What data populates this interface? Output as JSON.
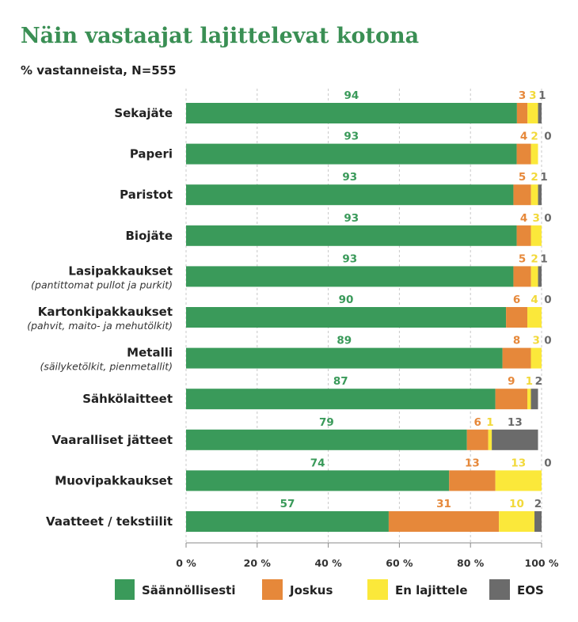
{
  "title": "Näin vastaajat lajittelevat kotona",
  "subtitle": "% vastanneista, N=555",
  "chart_data": {
    "type": "bar",
    "orientation": "horizontal",
    "stacked": true,
    "xlim": [
      0,
      100
    ],
    "x_ticks": [
      "0 %",
      "20 %",
      "40 %",
      "60 %",
      "80 %",
      "100 %"
    ],
    "categories": [
      {
        "label": "Sekajäte",
        "sublabel": ""
      },
      {
        "label": "Paperi",
        "sublabel": ""
      },
      {
        "label": "Paristot",
        "sublabel": ""
      },
      {
        "label": "Biojäte",
        "sublabel": ""
      },
      {
        "label": "Lasipakkaukset",
        "sublabel": "(pantittomat pullot ja purkit)"
      },
      {
        "label": "Kartonkipakkaukset",
        "sublabel": "(pahvit, maito- ja mehutölkit)"
      },
      {
        "label": "Metalli",
        "sublabel": "(säilyketölkit, pienmetallit)"
      },
      {
        "label": "Sähkölaitteet",
        "sublabel": ""
      },
      {
        "label": "Vaaralliset jätteet",
        "sublabel": ""
      },
      {
        "label": "Muovipakkaukset",
        "sublabel": ""
      },
      {
        "label": "Vaatteet / tekstiilit",
        "sublabel": ""
      }
    ],
    "series": [
      {
        "name": "Säännöllisesti",
        "color": "#3a9a5a",
        "label_color": "#3a9a5a",
        "values": [
          94,
          93,
          93,
          93,
          93,
          90,
          89,
          87,
          79,
          74,
          57
        ]
      },
      {
        "name": "Joskus",
        "color": "#e6883a",
        "label_color": "#e6883a",
        "values": [
          3,
          4,
          5,
          4,
          5,
          6,
          8,
          9,
          6,
          13,
          31
        ]
      },
      {
        "name": "En lajittele",
        "color": "#fbe83a",
        "label_color": "#f2d93a",
        "values": [
          3,
          2,
          2,
          3,
          2,
          4,
          3,
          1,
          1,
          13,
          10
        ]
      },
      {
        "name": "EOS",
        "color": "#6b6b6b",
        "label_color": "#6b6b6b",
        "values": [
          1,
          0,
          1,
          0,
          1,
          0,
          0,
          2,
          13,
          0,
          2
        ]
      }
    ]
  }
}
